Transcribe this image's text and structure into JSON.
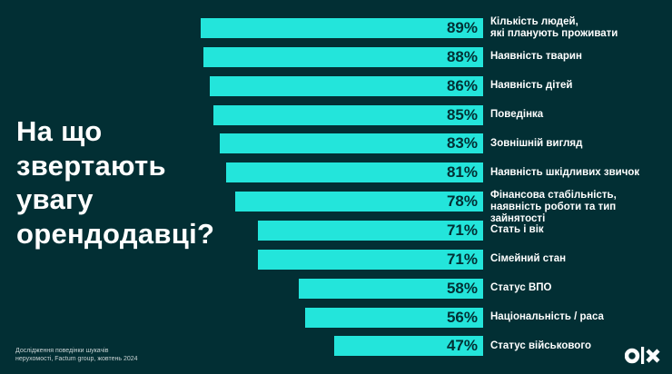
{
  "title_lines": [
    "На що",
    "звертають",
    "увагу",
    "орендодавці?"
  ],
  "footnote_lines": [
    "Дослідження поведінки шукачів",
    "нерухомості, Factum group, жовтень 2024"
  ],
  "logo_text": "OLX",
  "colors": {
    "background": "#022f34",
    "bar": "#23e5db",
    "text": "#ffffff"
  },
  "chart_data": {
    "type": "bar",
    "orientation": "horizontal",
    "unit": "%",
    "categories": [
      [
        "Кількість людей,",
        "які планують проживати"
      ],
      [
        "Наявність тварин"
      ],
      [
        "Наявність дітей"
      ],
      [
        "Поведінка"
      ],
      [
        "Зовнішній вигляд"
      ],
      [
        "Наявність шкідливих звичок"
      ],
      [
        "Фінансова стабільність,",
        "наявність роботи та тип зайнятості"
      ],
      [
        "Стать і вік"
      ],
      [
        "Сімейний стан"
      ],
      [
        "Статус ВПО"
      ],
      [
        "Національність / раса"
      ],
      [
        "Статус військового"
      ]
    ],
    "values": [
      89,
      88,
      86,
      85,
      83,
      81,
      78,
      71,
      71,
      58,
      56,
      47
    ],
    "value_labels": [
      "89%",
      "88%",
      "86%",
      "85%",
      "83%",
      "81%",
      "78%",
      "71%",
      "71%",
      "58%",
      "56%",
      "47%"
    ]
  }
}
